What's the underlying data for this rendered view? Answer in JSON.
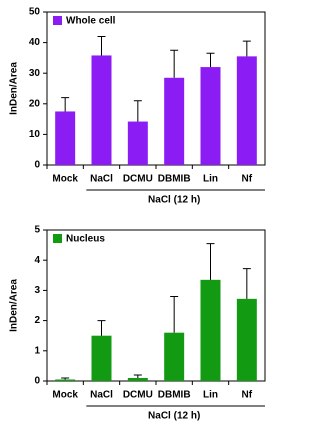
{
  "chart_data": [
    {
      "type": "bar",
      "ylabel": "InDen/Area",
      "xlabel": "NaCl (12 h)",
      "categories": [
        "Mock",
        "NaCl",
        "DCMU",
        "DBMIB",
        "Lin",
        "Nf"
      ],
      "series": [
        {
          "name": "Whole cell",
          "color": "#8b1cf4",
          "values": [
            17.5,
            35.8,
            14.2,
            28.5,
            32,
            35.5
          ],
          "errors": [
            4.5,
            6.2,
            6.8,
            9,
            4.5,
            5
          ]
        }
      ],
      "ylim": [
        0,
        50
      ],
      "yticks": [
        0,
        10,
        20,
        30,
        40,
        50
      ],
      "legend": "upper left"
    },
    {
      "type": "bar",
      "ylabel": "InDen/Area",
      "xlabel": "NaCl (12 h)",
      "categories": [
        "Mock",
        "NaCl",
        "DCMU",
        "DBMIB",
        "Lin",
        "Nf"
      ],
      "series": [
        {
          "name": "Nucleus",
          "color": "#129a12",
          "values": [
            0.05,
            1.5,
            0.1,
            1.6,
            3.35,
            2.72
          ],
          "errors": [
            0.05,
            0.5,
            0.1,
            1.2,
            1.2,
            1.0
          ]
        }
      ],
      "ylim": [
        0,
        5
      ],
      "yticks": [
        0,
        1,
        2,
        3,
        4,
        5
      ],
      "legend": "upper left"
    }
  ]
}
